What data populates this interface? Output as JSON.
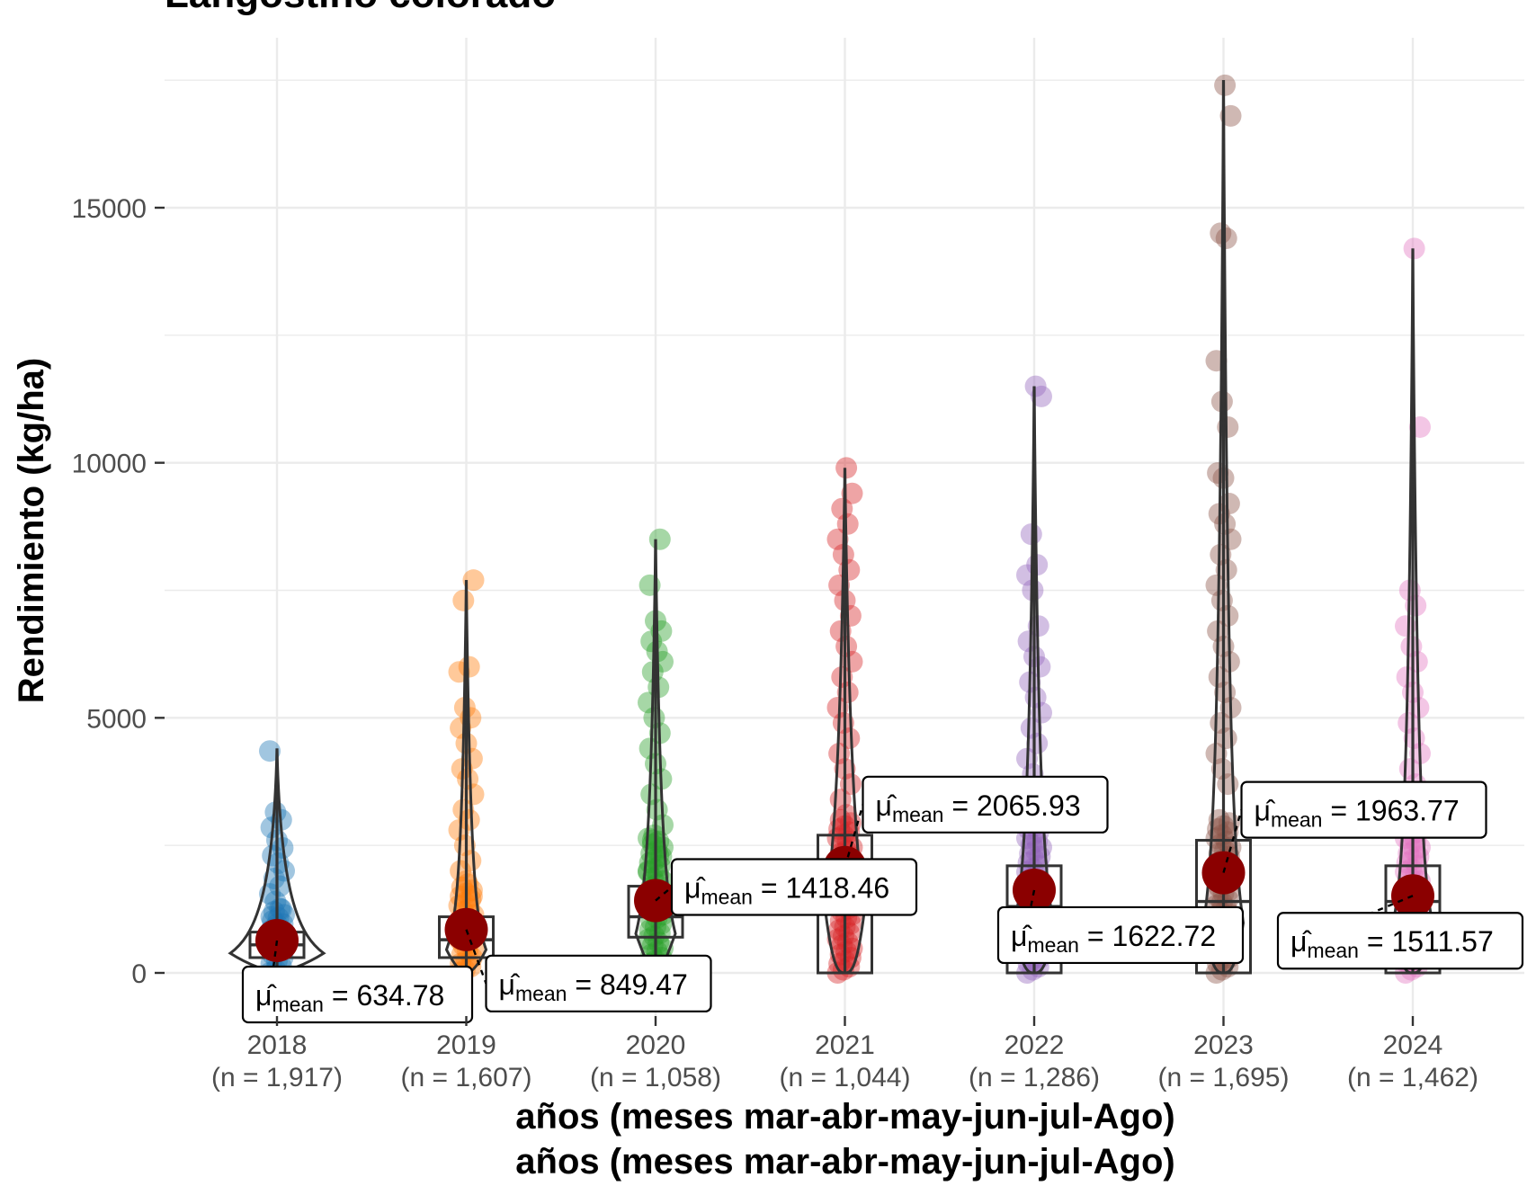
{
  "chart_data": {
    "type": "violin-box-scatter",
    "title": "Langostino colorado",
    "xlabel": "años (meses mar-abr-may-jun-jul-Ago)",
    "xlabel_repeat": "años (meses mar-abr-may-jun-jul-Ago)",
    "ylabel": "Rendimiento (kg/ha)",
    "ylim": [
      -900,
      17800
    ],
    "yticks": [
      0,
      5000,
      10000,
      15000
    ],
    "grid": true,
    "mean_prefix": "μ̂",
    "mean_sub": "mean",
    "mean_eq": " = ",
    "groups": [
      {
        "year": "2018",
        "n_label": "(n = 1,917)",
        "color": "#1f77b4",
        "mean": 634.78,
        "mean_label": "634.78",
        "max": 4400,
        "q1": 300,
        "median": 550,
        "q3": 800,
        "outliers": [
          4350,
          3150,
          3000,
          2850,
          2600,
          2450,
          2300,
          2150,
          2000,
          1850,
          1700,
          1550,
          1400,
          1250,
          1100,
          950
        ]
      },
      {
        "year": "2019",
        "n_label": "(n = 1,607)",
        "color": "#ff7f0e",
        "mean": 849.47,
        "mean_label": "849.47",
        "max": 7700,
        "q1": 300,
        "median": 650,
        "q3": 1100,
        "outliers": [
          7700,
          7300,
          6000,
          5900,
          5200,
          5000,
          4800,
          4500,
          4200,
          4000,
          3800,
          3500,
          3200,
          3000,
          2800,
          2500,
          2200,
          2000,
          1800,
          1500
        ]
      },
      {
        "year": "2020",
        "n_label": "(n = 1,058)",
        "color": "#2ca02c",
        "mean": 1418.46,
        "mean_label": "1418.46",
        "max": 8500,
        "q1": 700,
        "median": 1100,
        "q3": 1700,
        "outliers": [
          8500,
          7600,
          6900,
          6700,
          6500,
          6300,
          6100,
          5900,
          5600,
          5300,
          5000,
          4700,
          4400,
          4100,
          3800,
          3500,
          3200,
          2900,
          2600,
          2300,
          2000
        ]
      },
      {
        "year": "2021",
        "n_label": "(n = 1,044)",
        "color": "#d62728",
        "mean": 2065.93,
        "mean_label": "2065.93",
        "max": 9900,
        "q1": 0,
        "median": 1800,
        "q3": 2700,
        "outliers": [
          9900,
          9400,
          9100,
          8800,
          8500,
          8200,
          7900,
          7600,
          7300,
          7000,
          6700,
          6400,
          6100,
          5800,
          5500,
          5200,
          4900,
          4600,
          4300,
          4000,
          3700,
          3400,
          3100
        ]
      },
      {
        "year": "2022",
        "n_label": "(n = 1,286)",
        "color": "#9467bd",
        "mean": 1622.72,
        "mean_label": "1622.72",
        "max": 11500,
        "q1": 0,
        "median": 1300,
        "q3": 2100,
        "outliers": [
          11500,
          11300,
          8600,
          8000,
          7800,
          7500,
          6800,
          6500,
          6200,
          6000,
          5700,
          5400,
          5100,
          4800,
          4500,
          4200,
          3900,
          3600,
          3300,
          3000
        ]
      },
      {
        "year": "2023",
        "n_label": "(n = 1,695)",
        "color": "#8c564b",
        "mean": 1963.77,
        "mean_label": "1963.77",
        "max": 17500,
        "q1": 0,
        "median": 1400,
        "q3": 2600,
        "outliers": [
          17400,
          16800,
          14500,
          14400,
          12000,
          11200,
          10700,
          9800,
          9700,
          9200,
          9000,
          8800,
          8500,
          8200,
          7900,
          7600,
          7300,
          7000,
          6700,
          6400,
          6100,
          5800,
          5500,
          5200,
          4900,
          4600,
          4300,
          4000,
          3700
        ]
      },
      {
        "year": "2024",
        "n_label": "(n = 1,462)",
        "color": "#e377c2",
        "mean": 1511.57,
        "mean_label": "1511.57",
        "max": 14200,
        "q1": 0,
        "median": 1400,
        "q3": 2100,
        "outliers": [
          14200,
          10700,
          7500,
          7200,
          6800,
          6400,
          6100,
          5800,
          5500,
          5200,
          4900,
          4600,
          4300,
          4000,
          3700,
          3400,
          3100
        ]
      }
    ]
  }
}
